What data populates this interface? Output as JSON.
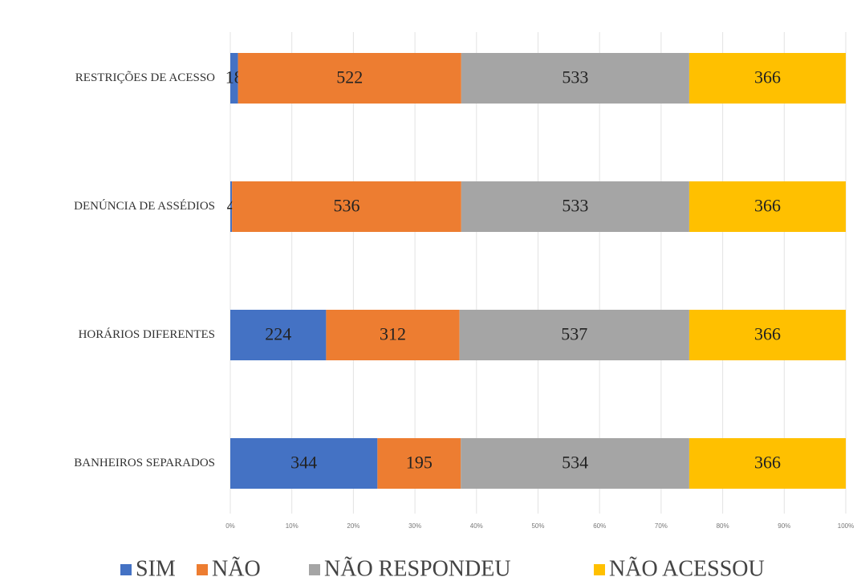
{
  "chart_data": {
    "type": "bar",
    "orientation": "horizontal",
    "stacked": "percent",
    "categories": [
      "RESTRIÇÕES DE ACESSO",
      "DENÚNCIA DE ASSÉDIOS",
      "HORÁRIOS DIFERENTES",
      "BANHEIROS SEPARADOS"
    ],
    "series": [
      {
        "name": "SIM",
        "color": "#4472c4",
        "values": [
          18,
          4,
          224,
          344
        ]
      },
      {
        "name": "NÃO",
        "color": "#ed7d31",
        "values": [
          522,
          536,
          312,
          195
        ]
      },
      {
        "name": "NÃO RESPONDEU",
        "color": "#a5a5a5",
        "values": [
          533,
          533,
          537,
          534
        ]
      },
      {
        "name": "NÃO ACESSOU",
        "color": "#ffc000",
        "values": [
          366,
          366,
          366,
          366
        ]
      }
    ],
    "xlim": [
      0,
      100
    ],
    "xticks": [
      {
        "value": 0,
        "label": "0%"
      },
      {
        "value": 10,
        "label": "10%"
      },
      {
        "value": 20,
        "label": "20%"
      },
      {
        "value": 30,
        "label": "30%"
      },
      {
        "value": 40,
        "label": "40%"
      },
      {
        "value": 50,
        "label": "50%"
      },
      {
        "value": 60,
        "label": "60%"
      },
      {
        "value": 70,
        "label": "70%"
      },
      {
        "value": 80,
        "label": "80%"
      },
      {
        "value": 90,
        "label": "90%"
      },
      {
        "value": 100,
        "label": "100%"
      }
    ],
    "grid": true,
    "legend": "bottom"
  }
}
